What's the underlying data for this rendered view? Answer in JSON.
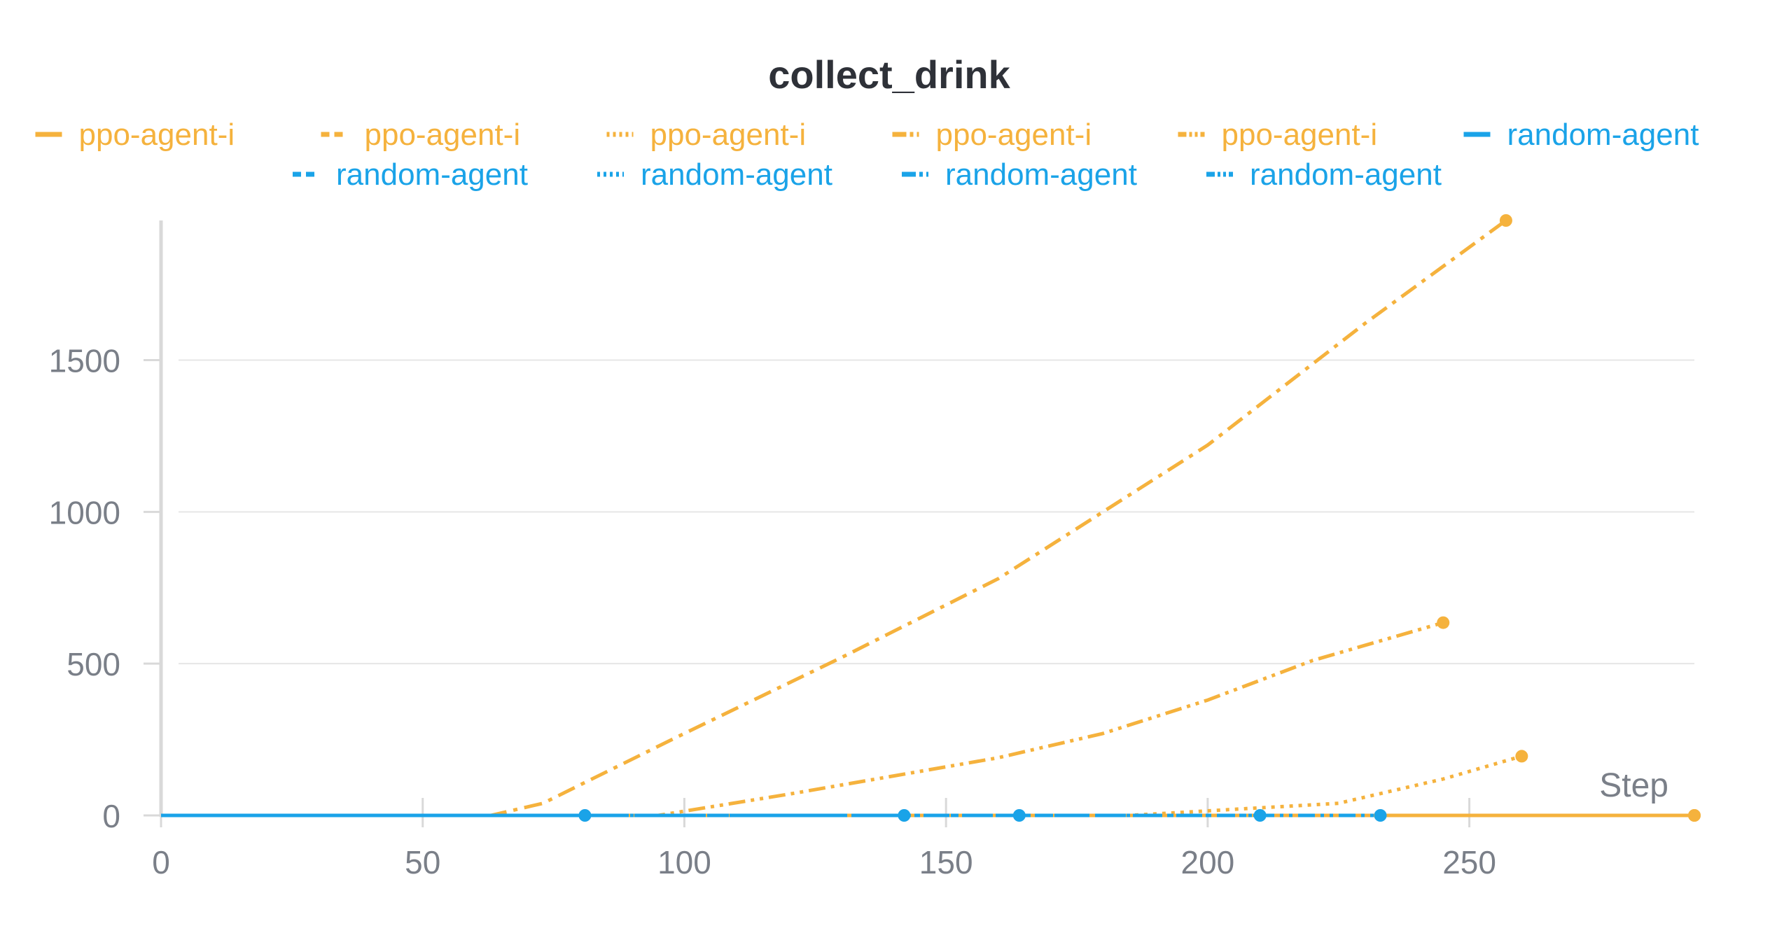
{
  "colors": {
    "ppo": "#F5B23D",
    "random": "#1AA3E8",
    "axis_text": "#7A7F88",
    "title": "#2E3138",
    "grid": "#E6E6E6",
    "axis_line": "#D9D9D9"
  },
  "chart_data": {
    "type": "line",
    "title": "collect_drink",
    "xlabel": "Step",
    "ylabel": "",
    "xlim": [
      0,
      293
    ],
    "ylim": [
      0,
      1960
    ],
    "xticks": [
      0,
      50,
      100,
      150,
      200,
      250
    ],
    "yticks": [
      0,
      500,
      1000,
      1500
    ],
    "grid": true,
    "legend_position": "top",
    "series": [
      {
        "name": "ppo-agent-i",
        "group": "ppo",
        "dash": "solid",
        "x": [
          0,
          293
        ],
        "y": [
          0,
          0
        ]
      },
      {
        "name": "ppo-agent-i",
        "group": "ppo",
        "dash": "dashed",
        "x": [
          0,
          293
        ],
        "y": [
          0,
          0
        ]
      },
      {
        "name": "ppo-agent-i",
        "group": "ppo",
        "dash": "dotted",
        "x": [
          0,
          185,
          205,
          225,
          245,
          260
        ],
        "y": [
          0,
          0,
          20,
          40,
          120,
          195
        ]
      },
      {
        "name": "ppo-agent-i",
        "group": "ppo",
        "dash": "dashdot",
        "x": [
          0,
          63,
          73,
          80,
          100,
          130,
          160,
          200,
          230,
          257
        ],
        "y": [
          0,
          0,
          40,
          100,
          270,
          520,
          780,
          1220,
          1620,
          1960
        ]
      },
      {
        "name": "ppo-agent-i",
        "group": "ppo",
        "dash": "dashdotdot",
        "x": [
          0,
          95,
          120,
          140,
          160,
          180,
          200,
          220,
          245
        ],
        "y": [
          0,
          0,
          70,
          130,
          190,
          270,
          380,
          510,
          635
        ]
      },
      {
        "name": "random-agent",
        "group": "random",
        "dash": "solid",
        "x": [
          0,
          81
        ],
        "y": [
          0,
          0
        ]
      },
      {
        "name": "random-agent",
        "group": "random",
        "dash": "dashed",
        "x": [
          0,
          142
        ],
        "y": [
          0,
          0
        ]
      },
      {
        "name": "random-agent",
        "group": "random",
        "dash": "dotted",
        "x": [
          0,
          164
        ],
        "y": [
          0,
          0
        ]
      },
      {
        "name": "random-agent",
        "group": "random",
        "dash": "dashdot",
        "x": [
          0,
          210
        ],
        "y": [
          0,
          0
        ]
      },
      {
        "name": "random-agent",
        "group": "random",
        "dash": "dashdotdot",
        "x": [
          0,
          233
        ],
        "y": [
          0,
          0
        ]
      }
    ]
  }
}
